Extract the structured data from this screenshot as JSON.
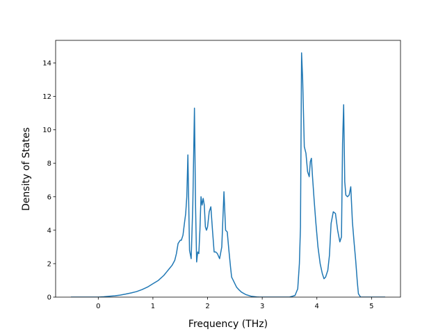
{
  "chart_data": {
    "type": "line",
    "title": "",
    "xlabel": "Frequency (THz)",
    "ylabel": "Density of States",
    "xlim": [
      -0.78,
      5.53
    ],
    "ylim": [
      0,
      15.35
    ],
    "xticks": [
      0,
      1,
      2,
      3,
      4,
      5
    ],
    "yticks": [
      0,
      2,
      4,
      6,
      8,
      10,
      12,
      14
    ],
    "grid": false,
    "legend": "none",
    "series": [
      {
        "color": "#1f77b4",
        "x": [
          -0.5,
          -0.3,
          -0.1,
          0.0,
          0.1,
          0.2,
          0.3,
          0.4,
          0.5,
          0.6,
          0.7,
          0.8,
          0.9,
          1.0,
          1.1,
          1.2,
          1.25,
          1.3,
          1.35,
          1.4,
          1.43,
          1.46,
          1.5,
          1.52,
          1.55,
          1.58,
          1.6,
          1.62,
          1.64,
          1.67,
          1.7,
          1.73,
          1.76,
          1.78,
          1.8,
          1.82,
          1.84,
          1.86,
          1.88,
          1.9,
          1.92,
          1.94,
          1.96,
          1.98,
          2.0,
          2.03,
          2.06,
          2.09,
          2.12,
          2.15,
          2.18,
          2.22,
          2.26,
          2.3,
          2.33,
          2.36,
          2.39,
          2.42,
          2.44,
          2.47,
          2.5,
          2.53,
          2.57,
          2.62,
          2.7,
          2.8,
          2.9,
          2.95,
          3.0,
          3.1,
          3.3,
          3.5,
          3.6,
          3.65,
          3.68,
          3.7,
          3.72,
          3.74,
          3.77,
          3.8,
          3.83,
          3.86,
          3.88,
          3.9,
          3.92,
          3.95,
          3.98,
          4.02,
          4.06,
          4.1,
          4.13,
          4.16,
          4.2,
          4.23,
          4.26,
          4.3,
          4.34,
          4.38,
          4.42,
          4.45,
          4.47,
          4.49,
          4.51,
          4.53,
          4.56,
          4.59,
          4.62,
          4.65,
          4.68,
          4.71,
          4.74,
          4.76,
          4.8,
          4.9,
          5.0,
          5.25
        ],
        "y": [
          0,
          0,
          0,
          0,
          0.02,
          0.05,
          0.08,
          0.12,
          0.18,
          0.25,
          0.33,
          0.45,
          0.6,
          0.8,
          1.0,
          1.3,
          1.5,
          1.7,
          1.9,
          2.2,
          2.6,
          3.2,
          3.4,
          3.4,
          3.7,
          4.5,
          5.0,
          6.0,
          8.5,
          2.8,
          2.3,
          5.5,
          11.3,
          5.5,
          2.1,
          2.7,
          2.6,
          4.0,
          6.0,
          5.5,
          5.9,
          5.5,
          4.2,
          4.0,
          4.2,
          5.1,
          5.4,
          4.0,
          2.7,
          2.7,
          2.6,
          2.3,
          3.0,
          6.3,
          4.0,
          3.9,
          2.8,
          1.8,
          1.2,
          1.0,
          0.8,
          0.6,
          0.45,
          0.3,
          0.15,
          0.05,
          0.01,
          0,
          0,
          0,
          0,
          0,
          0.1,
          0.5,
          2.0,
          4.2,
          14.6,
          13.0,
          9.0,
          8.6,
          7.5,
          7.2,
          8.1,
          8.3,
          7.2,
          5.8,
          4.5,
          3.0,
          2.0,
          1.4,
          1.1,
          1.2,
          1.6,
          2.5,
          4.4,
          5.1,
          5.0,
          4.0,
          3.3,
          3.6,
          9.2,
          11.5,
          6.9,
          6.1,
          6.0,
          6.1,
          6.6,
          4.5,
          3.3,
          2.2,
          0.9,
          0.2,
          0,
          0,
          0,
          0
        ]
      }
    ]
  }
}
